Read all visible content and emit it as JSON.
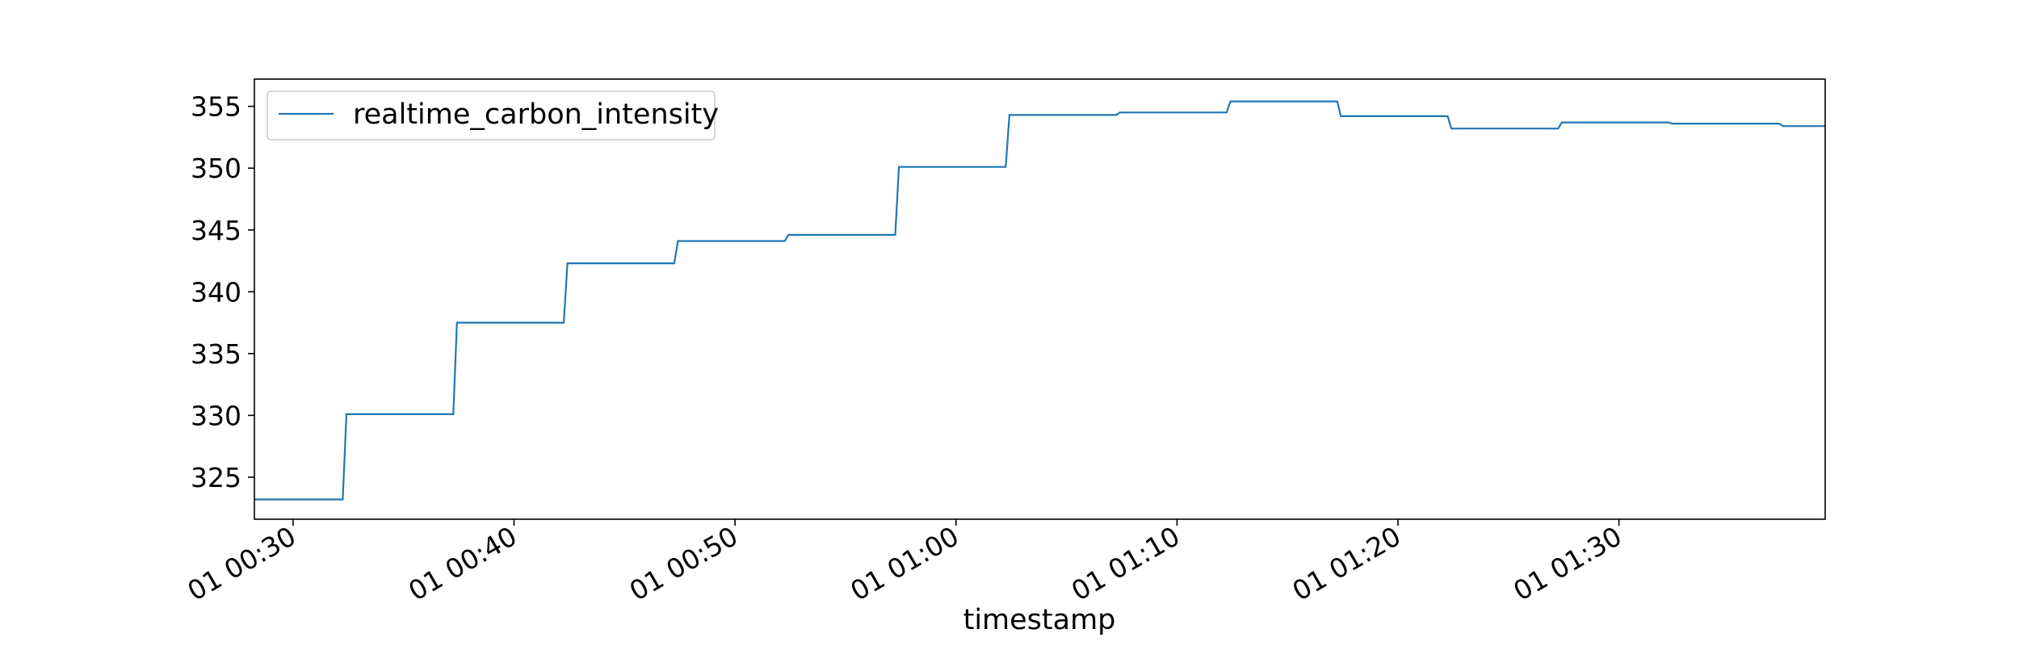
{
  "chart_data": {
    "type": "line",
    "title": "",
    "xlabel": "timestamp",
    "ylabel": "",
    "x_unit": "minutes",
    "xlim": [
      "00:28:15",
      "01:39:20"
    ],
    "ylim": [
      321.6,
      357.2
    ],
    "grid": false,
    "legend_position": "upper-left",
    "x_ticks": [
      {
        "value": "00:30",
        "label": "01 00:30"
      },
      {
        "value": "00:40",
        "label": "01 00:40"
      },
      {
        "value": "00:50",
        "label": "01 00:50"
      },
      {
        "value": "01:00",
        "label": "01 01:00"
      },
      {
        "value": "01:10",
        "label": "01 01:10"
      },
      {
        "value": "01:20",
        "label": "01 01:20"
      },
      {
        "value": "01:30",
        "label": "01 01:30"
      }
    ],
    "y_ticks": [
      325,
      330,
      335,
      340,
      345,
      350,
      355
    ],
    "series": [
      {
        "name": "realtime_carbon_intensity",
        "color": "#1f77b4",
        "points": [
          {
            "x": "00:28:15",
            "y": 323.2
          },
          {
            "x": "00:32:15",
            "y": 323.2
          },
          {
            "x": "00:32:25",
            "y": 330.1
          },
          {
            "x": "00:37:15",
            "y": 330.1
          },
          {
            "x": "00:37:25",
            "y": 337.5
          },
          {
            "x": "00:42:15",
            "y": 337.5
          },
          {
            "x": "00:42:25",
            "y": 342.3
          },
          {
            "x": "00:47:15",
            "y": 342.3
          },
          {
            "x": "00:47:25",
            "y": 344.1
          },
          {
            "x": "00:52:15",
            "y": 344.1
          },
          {
            "x": "00:52:25",
            "y": 344.6
          },
          {
            "x": "00:57:15",
            "y": 344.6
          },
          {
            "x": "00:57:25",
            "y": 350.1
          },
          {
            "x": "01:02:15",
            "y": 350.1
          },
          {
            "x": "01:02:25",
            "y": 354.3
          },
          {
            "x": "01:07:15",
            "y": 354.3
          },
          {
            "x": "01:07:25",
            "y": 354.5
          },
          {
            "x": "01:12:15",
            "y": 354.5
          },
          {
            "x": "01:12:25",
            "y": 355.4
          },
          {
            "x": "01:17:15",
            "y": 355.4
          },
          {
            "x": "01:17:25",
            "y": 354.2
          },
          {
            "x": "01:22:15",
            "y": 354.2
          },
          {
            "x": "01:22:25",
            "y": 353.2
          },
          {
            "x": "01:27:15",
            "y": 353.2
          },
          {
            "x": "01:27:25",
            "y": 353.7
          },
          {
            "x": "01:32:15",
            "y": 353.7
          },
          {
            "x": "01:32:25",
            "y": 353.6
          },
          {
            "x": "01:37:15",
            "y": 353.6
          },
          {
            "x": "01:37:25",
            "y": 353.4
          },
          {
            "x": "01:39:20",
            "y": 353.4
          }
        ]
      }
    ]
  }
}
